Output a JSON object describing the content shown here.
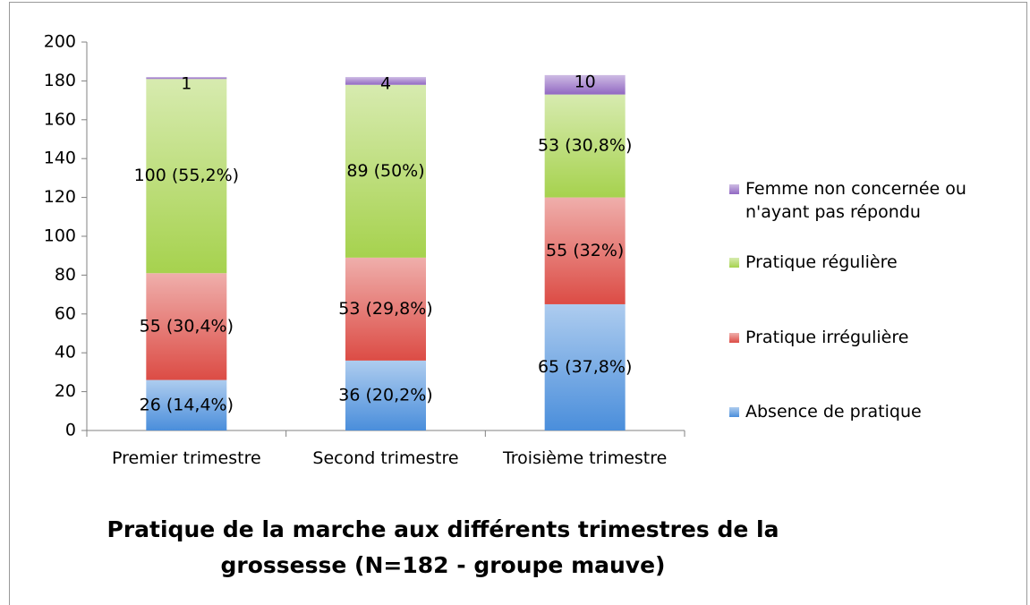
{
  "chart_data": {
    "type": "stacked_bar",
    "title": "Pratique de la marche aux différents trimestres de la grossesse (N=182 - groupe mauve)",
    "categories": [
      "Premier trimestre",
      "Second trimestre",
      "Troisième trimestre"
    ],
    "series": [
      {
        "name": "Absence de pratique",
        "color": "#4a8edb",
        "values": [
          26,
          36,
          65
        ],
        "value_labels": [
          "26 (14,4%)",
          "36 (20,2%)",
          "65 (37,8%)"
        ]
      },
      {
        "name": "Pratique irrégulière",
        "color": "#dc4c45",
        "values": [
          55,
          53,
          55
        ],
        "value_labels": [
          "55 (30,4%)",
          "53 (29,8%)",
          "55 (32%)"
        ]
      },
      {
        "name": "Pratique régulière",
        "color": "#a6d24e",
        "values": [
          100,
          89,
          53
        ],
        "value_labels": [
          "100 (55,2%)",
          "89 (50%)",
          "53 (30,8%)"
        ]
      },
      {
        "name": "Femme non concernée ou n'ayant pas répondu",
        "color": "#9168c2",
        "values": [
          1,
          4,
          10
        ]
      }
    ],
    "ylim": [
      0,
      200
    ],
    "yticks": [
      0,
      20,
      40,
      60,
      80,
      100,
      120,
      140,
      160,
      180,
      200
    ],
    "legend": "right"
  }
}
